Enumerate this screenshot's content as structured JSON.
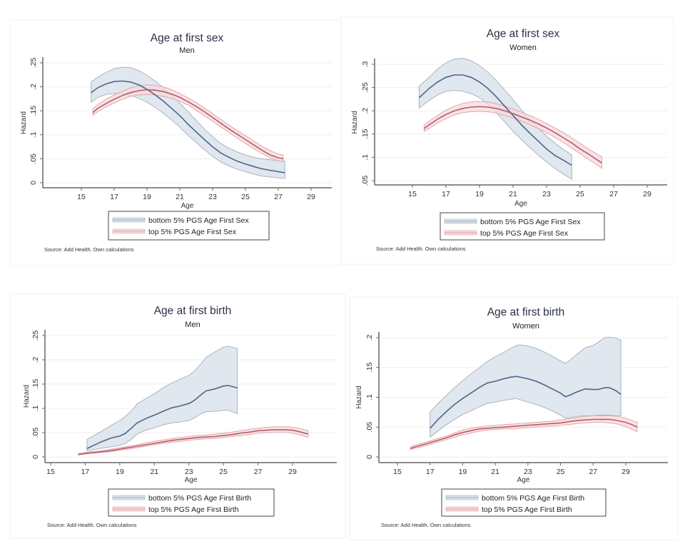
{
  "colors": {
    "bottom_line": "#4c6688",
    "bottom_band": "#dbe3ec",
    "bottom_band_edge": "#a9b4c0",
    "top_line": "#b85b6b",
    "top_band": "#f6d9dc",
    "top_band_edge": "#e3a7ae"
  },
  "chart_data": [
    {
      "type": "line",
      "title": "Age at first sex",
      "subtitle": "Men",
      "xlabel": "Age",
      "ylabel": "Hazard",
      "xlim": [
        13.5,
        30.5
      ],
      "ylim": [
        0,
        0.25
      ],
      "xticks": [
        15,
        17,
        19,
        21,
        23,
        25,
        27,
        29
      ],
      "yticks": [
        0,
        0.05,
        0.1,
        0.15,
        0.2,
        0.25
      ],
      "ytick_labels": [
        "0",
        ".05",
        ".1",
        ".15",
        ".2",
        ".25"
      ],
      "grid": true,
      "legend": "bottom",
      "source": "Source: Add Health.  Own calculations",
      "series": [
        {
          "name": "bottom 5% PGS Age First Sex",
          "key": "bottom",
          "x": [
            15.6,
            16,
            16.5,
            17,
            17.5,
            18,
            18.5,
            19,
            19.5,
            20,
            20.5,
            21,
            21.5,
            22,
            22.5,
            23,
            23.5,
            24,
            24.5,
            25,
            25.5,
            26,
            26.5,
            27,
            27.4
          ],
          "y": [
            0.188,
            0.198,
            0.206,
            0.211,
            0.212,
            0.21,
            0.204,
            0.195,
            0.183,
            0.17,
            0.155,
            0.14,
            0.122,
            0.106,
            0.09,
            0.075,
            0.062,
            0.053,
            0.045,
            0.039,
            0.034,
            0.029,
            0.026,
            0.023,
            0.021
          ],
          "lower": [
            0.168,
            0.178,
            0.184,
            0.186,
            0.186,
            0.182,
            0.176,
            0.168,
            0.157,
            0.145,
            0.131,
            0.116,
            0.099,
            0.084,
            0.069,
            0.055,
            0.043,
            0.035,
            0.028,
            0.023,
            0.018,
            0.014,
            0.012,
            0.01,
            0.009
          ],
          "upper": [
            0.21,
            0.22,
            0.23,
            0.238,
            0.241,
            0.24,
            0.234,
            0.224,
            0.212,
            0.198,
            0.182,
            0.166,
            0.148,
            0.13,
            0.112,
            0.096,
            0.082,
            0.072,
            0.064,
            0.058,
            0.053,
            0.05,
            0.048,
            0.046,
            0.045
          ]
        },
        {
          "name": "top 5% PGS Age First Sex",
          "key": "top",
          "x": [
            15.7,
            16,
            16.5,
            17,
            17.5,
            18,
            18.5,
            19,
            19.5,
            20,
            20.5,
            21,
            21.5,
            22,
            22.5,
            23,
            23.5,
            24,
            24.5,
            25,
            25.5,
            26,
            26.5,
            27,
            27.3
          ],
          "y": [
            0.146,
            0.155,
            0.165,
            0.174,
            0.182,
            0.188,
            0.192,
            0.194,
            0.193,
            0.19,
            0.185,
            0.178,
            0.169,
            0.159,
            0.148,
            0.136,
            0.124,
            0.112,
            0.101,
            0.09,
            0.079,
            0.068,
            0.058,
            0.052,
            0.05
          ],
          "lower": [
            0.14,
            0.148,
            0.158,
            0.166,
            0.174,
            0.18,
            0.183,
            0.184,
            0.183,
            0.18,
            0.176,
            0.17,
            0.162,
            0.151,
            0.14,
            0.128,
            0.116,
            0.105,
            0.093,
            0.082,
            0.071,
            0.061,
            0.052,
            0.046,
            0.044
          ],
          "upper": [
            0.154,
            0.163,
            0.174,
            0.183,
            0.191,
            0.198,
            0.202,
            0.204,
            0.203,
            0.2,
            0.194,
            0.186,
            0.177,
            0.167,
            0.156,
            0.144,
            0.132,
            0.12,
            0.109,
            0.098,
            0.087,
            0.076,
            0.067,
            0.06,
            0.058
          ]
        }
      ]
    },
    {
      "type": "line",
      "title": "Age at first sex",
      "subtitle": "Women",
      "xlabel": "Age",
      "ylabel": "Hazard",
      "xlim": [
        13.5,
        30.5
      ],
      "ylim": [
        0.05,
        0.3
      ],
      "xticks": [
        15,
        17,
        19,
        21,
        23,
        25,
        27,
        29
      ],
      "yticks": [
        0.05,
        0.1,
        0.15,
        0.2,
        0.25,
        0.3
      ],
      "ytick_labels": [
        ".05",
        ".1",
        ".15",
        ".2",
        ".25",
        ".3"
      ],
      "grid": true,
      "legend": "bottom",
      "source": "Source: Add Health.  Own calculations",
      "series": [
        {
          "name": "bottom 5% PGS Age First Sex",
          "key": "bottom",
          "x": [
            15.4,
            16,
            16.5,
            17,
            17.5,
            18,
            18.5,
            19,
            19.5,
            20,
            20.5,
            21,
            21.5,
            22,
            22.5,
            23,
            23.5,
            24,
            24.5
          ],
          "y": [
            0.228,
            0.248,
            0.262,
            0.272,
            0.277,
            0.277,
            0.272,
            0.262,
            0.248,
            0.23,
            0.21,
            0.19,
            0.17,
            0.152,
            0.135,
            0.118,
            0.104,
            0.094,
            0.083
          ],
          "lower": [
            0.206,
            0.222,
            0.234,
            0.242,
            0.244,
            0.242,
            0.237,
            0.228,
            0.214,
            0.196,
            0.176,
            0.156,
            0.138,
            0.121,
            0.105,
            0.09,
            0.076,
            0.064,
            0.053
          ],
          "upper": [
            0.253,
            0.272,
            0.29,
            0.303,
            0.311,
            0.313,
            0.308,
            0.297,
            0.283,
            0.265,
            0.245,
            0.224,
            0.202,
            0.182,
            0.163,
            0.146,
            0.13,
            0.117,
            0.105
          ]
        },
        {
          "name": "top 5% PGS Age First Sex",
          "key": "top",
          "x": [
            15.7,
            16,
            16.5,
            17,
            17.5,
            18,
            18.5,
            19,
            19.5,
            20,
            20.5,
            21,
            21.5,
            22,
            22.5,
            23,
            23.5,
            24,
            24.5,
            25,
            25.5,
            26,
            26.3
          ],
          "y": [
            0.162,
            0.17,
            0.182,
            0.192,
            0.2,
            0.205,
            0.208,
            0.209,
            0.208,
            0.205,
            0.2,
            0.194,
            0.187,
            0.18,
            0.172,
            0.163,
            0.153,
            0.142,
            0.131,
            0.118,
            0.107,
            0.095,
            0.088
          ],
          "lower": [
            0.156,
            0.162,
            0.174,
            0.183,
            0.191,
            0.196,
            0.198,
            0.199,
            0.198,
            0.195,
            0.19,
            0.185,
            0.178,
            0.17,
            0.162,
            0.153,
            0.143,
            0.132,
            0.12,
            0.108,
            0.096,
            0.084,
            0.076
          ],
          "upper": [
            0.169,
            0.178,
            0.19,
            0.201,
            0.21,
            0.216,
            0.219,
            0.22,
            0.219,
            0.215,
            0.21,
            0.204,
            0.197,
            0.19,
            0.182,
            0.173,
            0.163,
            0.153,
            0.142,
            0.13,
            0.118,
            0.107,
            0.101
          ]
        }
      ]
    },
    {
      "type": "line",
      "title": "Age at first birth",
      "subtitle": "Men",
      "xlabel": "Age",
      "ylabel": "Hazard",
      "xlim": [
        14.6,
        31.2
      ],
      "ylim": [
        0,
        0.25
      ],
      "xticks": [
        15,
        17,
        19,
        21,
        23,
        25,
        27,
        29
      ],
      "yticks": [
        0,
        0.05,
        0.1,
        0.15,
        0.2,
        0.25
      ],
      "ytick_labels": [
        "0",
        ".05",
        ".1",
        ".15",
        ".2",
        ".25"
      ],
      "grid": true,
      "legend": "bottom",
      "source": "Source: Add Health.  Own calculations",
      "series": [
        {
          "name": "bottom 5% PGS Age First Birth",
          "key": "bottom",
          "x": [
            17.1,
            17.5,
            18,
            18.5,
            19,
            19.3,
            19.7,
            20,
            20.5,
            21,
            21.5,
            22,
            22.5,
            23,
            23.3,
            23.7,
            24,
            24.5,
            25,
            25.3,
            25.8
          ],
          "y": [
            0.017,
            0.024,
            0.032,
            0.039,
            0.043,
            0.048,
            0.06,
            0.07,
            0.079,
            0.086,
            0.094,
            0.101,
            0.105,
            0.11,
            0.116,
            0.128,
            0.136,
            0.14,
            0.146,
            0.147,
            0.142
          ],
          "lower": [
            0.012,
            0.015,
            0.018,
            0.021,
            0.024,
            0.027,
            0.037,
            0.047,
            0.055,
            0.06,
            0.066,
            0.07,
            0.072,
            0.075,
            0.08,
            0.089,
            0.093,
            0.094,
            0.096,
            0.096,
            0.089
          ],
          "upper": [
            0.036,
            0.044,
            0.054,
            0.065,
            0.075,
            0.083,
            0.096,
            0.109,
            0.12,
            0.13,
            0.142,
            0.152,
            0.16,
            0.168,
            0.176,
            0.192,
            0.205,
            0.216,
            0.226,
            0.228,
            0.223
          ]
        },
        {
          "name": "top 5% PGS Age First Birth",
          "key": "top",
          "x": [
            16.6,
            17,
            17.5,
            18,
            18.5,
            19,
            19.5,
            20,
            20.5,
            21,
            21.5,
            22,
            22.5,
            23,
            23.5,
            24,
            24.5,
            25,
            25.5,
            26,
            26.5,
            27,
            27.5,
            28,
            28.5,
            29,
            29.5,
            29.9
          ],
          "y": [
            0.005,
            0.007,
            0.009,
            0.011,
            0.013,
            0.016,
            0.019,
            0.022,
            0.025,
            0.028,
            0.031,
            0.034,
            0.036,
            0.038,
            0.04,
            0.041,
            0.042,
            0.044,
            0.046,
            0.049,
            0.051,
            0.054,
            0.055,
            0.056,
            0.056,
            0.055,
            0.051,
            0.047
          ],
          "lower": [
            0.004,
            0.006,
            0.008,
            0.009,
            0.011,
            0.014,
            0.016,
            0.019,
            0.022,
            0.025,
            0.028,
            0.03,
            0.032,
            0.034,
            0.036,
            0.037,
            0.038,
            0.04,
            0.042,
            0.044,
            0.046,
            0.049,
            0.05,
            0.051,
            0.051,
            0.049,
            0.045,
            0.04
          ],
          "upper": [
            0.007,
            0.009,
            0.011,
            0.013,
            0.016,
            0.019,
            0.022,
            0.025,
            0.029,
            0.032,
            0.035,
            0.038,
            0.04,
            0.042,
            0.044,
            0.045,
            0.047,
            0.049,
            0.051,
            0.054,
            0.057,
            0.059,
            0.061,
            0.062,
            0.062,
            0.061,
            0.058,
            0.054
          ]
        }
      ]
    },
    {
      "type": "line",
      "title": "Age at first birth",
      "subtitle": "Women",
      "xlabel": "Age",
      "ylabel": "Hazard",
      "xlim": [
        13.9,
        31.0
      ],
      "ylim": [
        0,
        0.2
      ],
      "xticks": [
        15,
        17,
        19,
        21,
        23,
        25,
        27,
        29
      ],
      "yticks": [
        0,
        0.05,
        0.1,
        0.15,
        0.2
      ],
      "ytick_labels": [
        "0",
        ".05",
        ".1",
        ".15",
        ".2"
      ],
      "grid": true,
      "legend": "bottom",
      "source": "Source: Add Health.  Own calculations",
      "series": [
        {
          "name": "bottom 5% PGS Age First Birth",
          "key": "bottom",
          "x": [
            17,
            17.5,
            18,
            18.5,
            19,
            19.5,
            20,
            20.5,
            21,
            21.5,
            22,
            22.3,
            22.5,
            23,
            23.5,
            24,
            24.5,
            25,
            25.3,
            25.6,
            26,
            26.5,
            27,
            27.3,
            27.7,
            28,
            28.4,
            28.7
          ],
          "y": [
            0.048,
            0.063,
            0.076,
            0.088,
            0.098,
            0.107,
            0.116,
            0.124,
            0.127,
            0.131,
            0.134,
            0.135,
            0.134,
            0.131,
            0.127,
            0.121,
            0.114,
            0.107,
            0.101,
            0.104,
            0.109,
            0.114,
            0.113,
            0.113,
            0.116,
            0.116,
            0.111,
            0.105
          ],
          "lower": [
            0.033,
            0.044,
            0.054,
            0.063,
            0.071,
            0.077,
            0.084,
            0.09,
            0.092,
            0.095,
            0.097,
            0.098,
            0.096,
            0.092,
            0.088,
            0.083,
            0.077,
            0.07,
            0.065,
            0.066,
            0.068,
            0.069,
            0.069,
            0.07,
            0.07,
            0.07,
            0.069,
            0.069
          ],
          "upper": [
            0.075,
            0.09,
            0.103,
            0.116,
            0.128,
            0.139,
            0.149,
            0.16,
            0.168,
            0.175,
            0.183,
            0.187,
            0.188,
            0.186,
            0.182,
            0.176,
            0.169,
            0.161,
            0.157,
            0.163,
            0.172,
            0.183,
            0.187,
            0.192,
            0.2,
            0.201,
            0.199,
            0.196
          ]
        },
        {
          "name": "top 5% PGS Age First Birth",
          "key": "top",
          "x": [
            15.8,
            16,
            16.5,
            17,
            17.5,
            18,
            18.5,
            19,
            19.5,
            20,
            20.5,
            21,
            21.5,
            22,
            22.5,
            23,
            23.5,
            24,
            24.5,
            25,
            25.5,
            26,
            26.5,
            27,
            27.5,
            28,
            28.5,
            29,
            29.3,
            29.7
          ],
          "y": [
            0.014,
            0.016,
            0.02,
            0.024,
            0.028,
            0.032,
            0.037,
            0.041,
            0.044,
            0.047,
            0.048,
            0.049,
            0.05,
            0.051,
            0.052,
            0.053,
            0.054,
            0.055,
            0.056,
            0.057,
            0.059,
            0.061,
            0.062,
            0.063,
            0.063,
            0.063,
            0.061,
            0.058,
            0.055,
            0.05
          ],
          "lower": [
            0.012,
            0.014,
            0.017,
            0.021,
            0.025,
            0.029,
            0.033,
            0.037,
            0.04,
            0.043,
            0.045,
            0.046,
            0.047,
            0.047,
            0.048,
            0.049,
            0.05,
            0.051,
            0.052,
            0.053,
            0.054,
            0.056,
            0.057,
            0.058,
            0.058,
            0.057,
            0.055,
            0.051,
            0.047,
            0.042
          ],
          "upper": [
            0.017,
            0.019,
            0.023,
            0.027,
            0.031,
            0.035,
            0.04,
            0.045,
            0.048,
            0.05,
            0.052,
            0.053,
            0.054,
            0.055,
            0.056,
            0.057,
            0.058,
            0.059,
            0.06,
            0.062,
            0.064,
            0.066,
            0.068,
            0.069,
            0.069,
            0.069,
            0.068,
            0.065,
            0.062,
            0.058
          ]
        }
      ]
    }
  ]
}
